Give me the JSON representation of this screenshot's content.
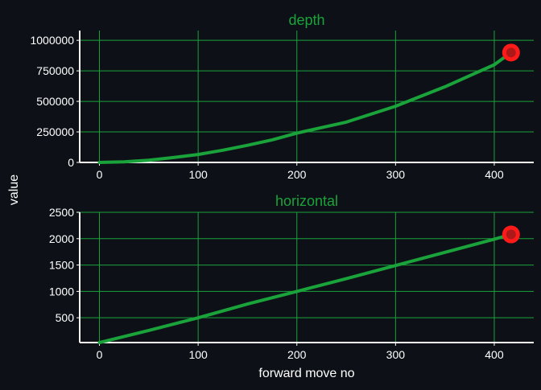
{
  "colors": {
    "background": "#0d1117",
    "series": "#1aa33a",
    "grid": "#1aa33a",
    "title": "#1aa33a",
    "marker_fill": "#ff1a1a",
    "marker_core": "#8a1a1a",
    "axis": "#ffffff",
    "text": "#ffffff"
  },
  "shared": {
    "ylabel": "value",
    "xlabel": "forward move no"
  },
  "chart_data": [
    {
      "type": "line",
      "title": "depth",
      "xlabel": "",
      "ylabel": "value",
      "xlim": [
        -20,
        440
      ],
      "ylim": [
        0,
        1080000
      ],
      "x_ticks": [
        0,
        100,
        200,
        300,
        400
      ],
      "y_ticks": [
        0,
        250000,
        500000,
        750000,
        1000000
      ],
      "grid": true,
      "series": [
        {
          "x": [
            0,
            25,
            50,
            75,
            100,
            125,
            150,
            175,
            200,
            225,
            250,
            275,
            300,
            325,
            350,
            375,
            400,
            417
          ],
          "values": [
            0,
            5000,
            18000,
            40000,
            65000,
            100000,
            140000,
            185000,
            240000,
            285000,
            330000,
            395000,
            460000,
            540000,
            620000,
            710000,
            800000,
            900000
          ]
        }
      ],
      "highlight_point": {
        "x": 417,
        "y": 900000
      }
    },
    {
      "type": "line",
      "title": "horizontal",
      "xlabel": "forward move no",
      "ylabel": "value",
      "xlim": [
        -20,
        440
      ],
      "ylim": [
        30,
        2500
      ],
      "x_ticks": [
        0,
        100,
        200,
        300,
        400
      ],
      "y_ticks": [
        500,
        1000,
        1500,
        2000,
        2500
      ],
      "grid": true,
      "series": [
        {
          "x": [
            0,
            50,
            100,
            150,
            200,
            250,
            300,
            350,
            400,
            417
          ],
          "values": [
            30,
            260,
            500,
            760,
            1000,
            1240,
            1490,
            1740,
            1990,
            2080
          ]
        }
      ],
      "highlight_point": {
        "x": 417,
        "y": 2080
      }
    }
  ]
}
